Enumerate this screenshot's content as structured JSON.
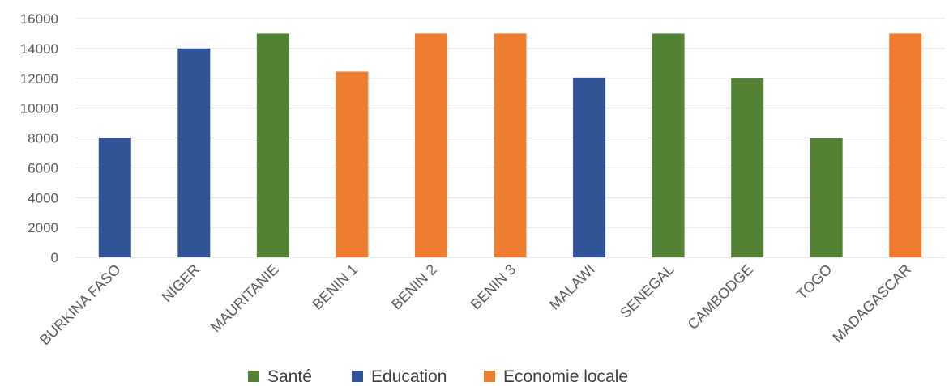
{
  "chart_data": {
    "type": "bar",
    "title": "",
    "xlabel": "",
    "ylabel": "",
    "ylim": [
      0,
      16000
    ],
    "yticks": [
      "0",
      "2000",
      "4000",
      "6000",
      "8000",
      "10000",
      "12000",
      "14000",
      "16000"
    ],
    "grid": true,
    "legend_position": "bottom",
    "categories": [
      "BURKINA FASO",
      "NIGER",
      "MAURITANIE",
      "BENIN 1",
      "BENIN 2",
      "BENIN 3",
      "MALAWI",
      "SENEGAL",
      "CAMBODGE",
      "TOGO",
      "MADAGASCAR"
    ],
    "values": [
      8000,
      14000,
      15000,
      12450,
      15000,
      15000,
      12050,
      15000,
      12000,
      8000,
      15000
    ],
    "sectors": [
      "Education",
      "Education",
      "Santé",
      "Economie locale",
      "Economie locale",
      "Economie locale",
      "Education",
      "Santé",
      "Santé",
      "Santé",
      "Economie locale"
    ],
    "legend": [
      {
        "name": "Santé",
        "color": "#548235"
      },
      {
        "name": "Education",
        "color": "#2f5597"
      },
      {
        "name": "Economie locale",
        "color": "#ed7d31"
      }
    ]
  }
}
